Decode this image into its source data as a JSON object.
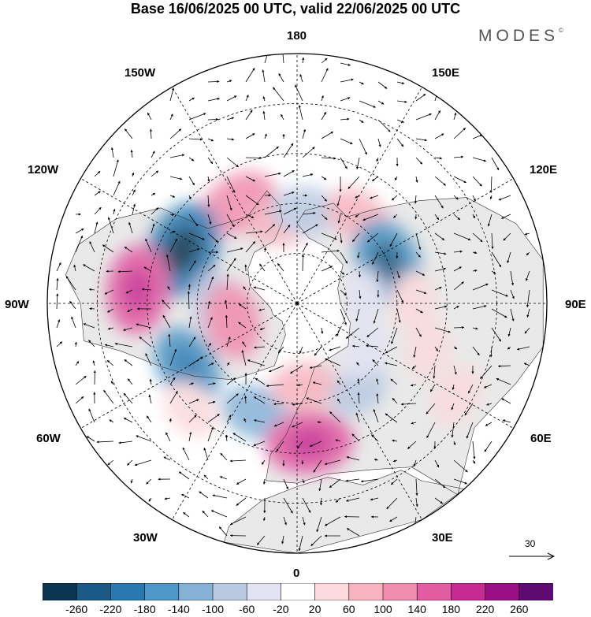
{
  "title": "Base 16/06/2025 00 UTC, valid 22/06/2025 00 UTC",
  "brand": "MODES",
  "brand_mark": "©",
  "longitude_labels": {
    "top": "180",
    "bottom": "0",
    "left": "90W",
    "right": "90E",
    "w150": "150W",
    "w120": "120W",
    "w60": "60W",
    "w30": "30W",
    "e150": "150E",
    "e120": "120E",
    "e60": "60E",
    "e30": "30E"
  },
  "reference_vector": {
    "label": "30"
  },
  "colorbar": {
    "colors": [
      "#0b3550",
      "#1b5a85",
      "#2a78b0",
      "#4f97c6",
      "#85b1d6",
      "#b9c9e2",
      "#e2e2f2",
      "#ffffff",
      "#fbd9dc",
      "#f7b3bf",
      "#f08cae",
      "#e25ca2",
      "#c82a93",
      "#9a0f83",
      "#5e0a73"
    ],
    "labels": [
      "-260",
      "-220",
      "-180",
      "-140",
      "-100",
      "-60",
      "-20",
      "20",
      "60",
      "100",
      "140",
      "180",
      "220",
      "260"
    ]
  },
  "anomaly_blobs": [
    {
      "lon": -150,
      "lat": 55,
      "value": 120
    },
    {
      "lon": -170,
      "lat": 65,
      "value": 80
    },
    {
      "lon": 175,
      "lat": 62,
      "value": -80
    },
    {
      "lon": 145,
      "lat": 58,
      "value": 80
    },
    {
      "lon": 115,
      "lat": 60,
      "value": -160
    },
    {
      "lon": 90,
      "lat": 55,
      "value": 60
    },
    {
      "lon": 70,
      "lat": 48,
      "value": 40
    },
    {
      "lon": 95,
      "lat": 70,
      "value": -40
    },
    {
      "lon": -115,
      "lat": 52,
      "value": -200
    },
    {
      "lon": -95,
      "lat": 42,
      "value": 160
    },
    {
      "lon": -90,
      "lat": 65,
      "value": -60
    },
    {
      "lon": -60,
      "lat": 52,
      "value": -140
    },
    {
      "lon": -75,
      "lat": 70,
      "value": 120
    },
    {
      "lon": -45,
      "lat": 45,
      "value": 60
    },
    {
      "lon": -20,
      "lat": 55,
      "value": -100
    },
    {
      "lon": 5,
      "lat": 48,
      "value": 160
    },
    {
      "lon": 5,
      "lat": 65,
      "value": 80
    },
    {
      "lon": 35,
      "lat": 58,
      "value": -60
    },
    {
      "lon": 55,
      "lat": 65,
      "value": -40
    },
    {
      "lon": 60,
      "lat": 35,
      "value": 60
    }
  ]
}
